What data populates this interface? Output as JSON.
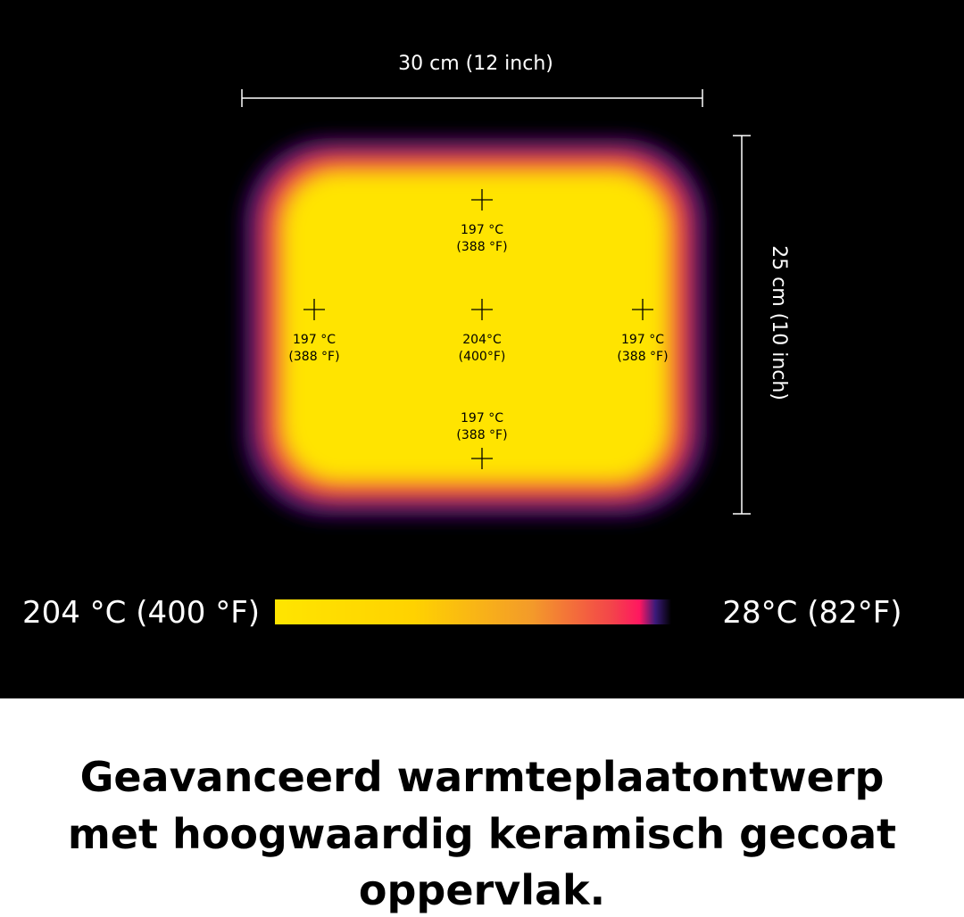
{
  "dimensions": {
    "width": "30 cm (12 inch)",
    "height": "25 cm (10 inch)"
  },
  "points": [
    {
      "temp_c": "197 °C",
      "temp_f": "(388 °F)"
    },
    {
      "temp_c": "197 °C",
      "temp_f": "(388 °F)"
    },
    {
      "temp_c": "204°C",
      "temp_f": "(400°F)"
    },
    {
      "temp_c": "197 °C",
      "temp_f": "(388 °F)"
    },
    {
      "temp_c": "197 °C",
      "temp_f": "(388 °F)"
    }
  ],
  "legend": {
    "max": "204 °C (400 °F)",
    "min": "28°C (82°F)"
  },
  "caption": [
    "Geavanceerd warmteplaatontwerp",
    "met hoogwaardig keramisch gecoat",
    "oppervlak."
  ]
}
